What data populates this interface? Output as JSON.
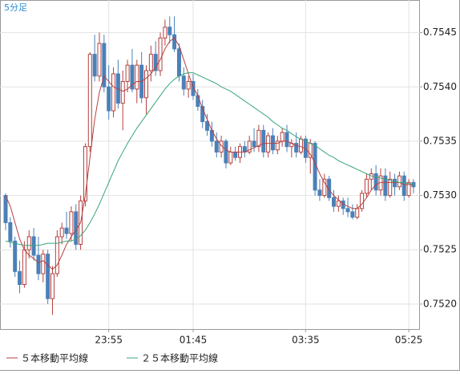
{
  "chart_data": {
    "type": "candlestick",
    "title": "5分足",
    "categories": [
      null,
      null,
      null,
      null,
      null,
      null,
      null,
      null,
      null,
      null,
      null,
      null,
      null,
      null,
      null,
      null,
      null,
      null,
      null,
      null,
      null,
      null,
      "23:55",
      null,
      null,
      null,
      null,
      null,
      null,
      null,
      null,
      null,
      null,
      null,
      null,
      null,
      null,
      null,
      null,
      null,
      "01:45",
      null,
      null,
      null,
      null,
      null,
      null,
      null,
      null,
      null,
      null,
      null,
      null,
      null,
      null,
      null,
      null,
      null,
      null,
      null,
      null,
      null,
      null,
      null,
      "03:35",
      null,
      null,
      null,
      null,
      null,
      null,
      null,
      null,
      null,
      null,
      null,
      null,
      null,
      null,
      null,
      null,
      null,
      null,
      null,
      null,
      null,
      "05:25",
      null
    ],
    "open": [
      0.753,
      0.75275,
      0.75258,
      0.7523,
      0.75218,
      0.7525,
      0.75262,
      0.75245,
      0.75228,
      0.75246,
      0.75205,
      0.75228,
      0.75262,
      0.7527,
      0.75265,
      0.75285,
      0.75255,
      0.75295,
      0.75345,
      0.7543,
      0.7541,
      0.7544,
      0.754,
      0.75378,
      0.75412,
      0.75385,
      0.75405,
      0.7542,
      0.75398,
      0.7542,
      0.7539,
      0.75415,
      0.7543,
      0.75415,
      0.75445,
      0.75455,
      0.75448,
      0.75435,
      0.7541,
      0.75398,
      0.75405,
      0.75392,
      0.75382,
      0.75368,
      0.7536,
      0.7535,
      0.7534,
      0.7535,
      0.7533,
      0.7534,
      0.75335,
      0.75345,
      0.7534,
      0.7535,
      0.75345,
      0.7536,
      0.7534,
      0.75355,
      0.75342,
      0.7535,
      0.75358,
      0.75345,
      0.75348,
      0.7534,
      0.75352,
      0.75335,
      0.75348,
      0.75305,
      0.753,
      0.75315,
      0.75298,
      0.7529,
      0.75295,
      0.75288,
      0.75285,
      0.7528,
      0.75288,
      0.75302,
      0.75315,
      0.7532,
      0.75305,
      0.75318,
      0.753,
      0.75315,
      0.75308,
      0.75318,
      0.753,
      0.75312
    ],
    "high": [
      0.75302,
      0.7528,
      0.75262,
      0.7524,
      0.75258,
      0.75268,
      0.7527,
      0.75262,
      0.7525,
      0.7525,
      0.75235,
      0.75268,
      0.75275,
      0.75285,
      0.7529,
      0.75292,
      0.753,
      0.75348,
      0.75432,
      0.75448,
      0.7545,
      0.75448,
      0.7542,
      0.75418,
      0.75425,
      0.75415,
      0.75425,
      0.75435,
      0.75425,
      0.75432,
      0.7542,
      0.75438,
      0.75442,
      0.7545,
      0.75462,
      0.75465,
      0.75465,
      0.7544,
      0.75418,
      0.7541,
      0.75412,
      0.75398,
      0.75388,
      0.75375,
      0.75368,
      0.75358,
      0.75355,
      0.75352,
      0.75345,
      0.75345,
      0.75348,
      0.7535,
      0.75355,
      0.75362,
      0.75365,
      0.75365,
      0.75358,
      0.75362,
      0.75355,
      0.75362,
      0.75365,
      0.75352,
      0.75358,
      0.75355,
      0.75355,
      0.75352,
      0.7535,
      0.75315,
      0.7532,
      0.75318,
      0.75305,
      0.753,
      0.75298,
      0.75298,
      0.75292,
      0.75292,
      0.75305,
      0.7532,
      0.75325,
      0.75328,
      0.75325,
      0.75325,
      0.75322,
      0.7532,
      0.75322,
      0.75322,
      0.75315,
      0.75315
    ],
    "low": [
      0.75268,
      0.75252,
      0.75225,
      0.7521,
      0.75215,
      0.75242,
      0.7524,
      0.75222,
      0.7522,
      0.752,
      0.7519,
      0.75225,
      0.75255,
      0.7526,
      0.75258,
      0.7525,
      0.7525,
      0.7529,
      0.7534,
      0.75405,
      0.75405,
      0.75395,
      0.7537,
      0.75372,
      0.7538,
      0.7536,
      0.75395,
      0.75395,
      0.75385,
      0.75385,
      0.75375,
      0.75405,
      0.7541,
      0.7541,
      0.75438,
      0.7544,
      0.75432,
      0.75405,
      0.75392,
      0.7539,
      0.75388,
      0.75378,
      0.75362,
      0.75355,
      0.75345,
      0.75335,
      0.75335,
      0.75325,
      0.75328,
      0.75332,
      0.7533,
      0.75335,
      0.75338,
      0.7534,
      0.7534,
      0.75335,
      0.75335,
      0.75338,
      0.75338,
      0.75345,
      0.7534,
      0.75335,
      0.75335,
      0.75338,
      0.7533,
      0.7532,
      0.753,
      0.75295,
      0.75298,
      0.75295,
      0.75285,
      0.75285,
      0.75282,
      0.7528,
      0.75278,
      0.75278,
      0.75285,
      0.75298,
      0.75305,
      0.753,
      0.753,
      0.75295,
      0.75298,
      0.753,
      0.75305,
      0.75295,
      0.75298,
      0.75302
    ],
    "close": [
      0.75275,
      0.75258,
      0.7523,
      0.75218,
      0.7525,
      0.75262,
      0.75245,
      0.75228,
      0.75246,
      0.75205,
      0.75228,
      0.75262,
      0.7527,
      0.75265,
      0.75285,
      0.75255,
      0.75295,
      0.75345,
      0.7543,
      0.7541,
      0.7544,
      0.754,
      0.75378,
      0.75412,
      0.75385,
      0.75405,
      0.7542,
      0.75398,
      0.7542,
      0.7539,
      0.75415,
      0.7543,
      0.75415,
      0.75445,
      0.75455,
      0.75448,
      0.75435,
      0.7541,
      0.75398,
      0.75405,
      0.75392,
      0.75382,
      0.75368,
      0.7536,
      0.7535,
      0.7534,
      0.7535,
      0.7533,
      0.7534,
      0.75335,
      0.75345,
      0.7534,
      0.7535,
      0.75345,
      0.7536,
      0.7534,
      0.75355,
      0.75342,
      0.7535,
      0.75358,
      0.75345,
      0.75348,
      0.7534,
      0.75352,
      0.75335,
      0.75348,
      0.75305,
      0.753,
      0.75315,
      0.75298,
      0.7529,
      0.75295,
      0.75288,
      0.75285,
      0.7528,
      0.75288,
      0.75302,
      0.75315,
      0.7532,
      0.75305,
      0.75318,
      0.753,
      0.75315,
      0.75308,
      0.75318,
      0.753,
      0.75312,
      0.75308
    ],
    "up_color": "#b5413f",
    "down_color": "#4b80b8",
    "series": [
      {
        "name": "５本移動平均線",
        "color": "#b5413f",
        "values": [
          0.753,
          0.7529,
          0.75275,
          0.7526,
          0.7525,
          0.75245,
          0.75242,
          0.75238,
          0.7524,
          0.75236,
          0.75232,
          0.75236,
          0.75245,
          0.75255,
          0.75262,
          0.75268,
          0.75275,
          0.753,
          0.75335,
          0.7537,
          0.75395,
          0.7541,
          0.75405,
          0.754,
          0.75398,
          0.75396,
          0.75398,
          0.75402,
          0.75405,
          0.75405,
          0.75408,
          0.75412,
          0.75418,
          0.75425,
          0.75435,
          0.75442,
          0.75445,
          0.75438,
          0.75425,
          0.75412,
          0.754,
          0.75392,
          0.7538,
          0.7537,
          0.7536,
          0.75352,
          0.75346,
          0.75342,
          0.7534,
          0.7534,
          0.7534,
          0.7534,
          0.75342,
          0.75344,
          0.75346,
          0.75348,
          0.75348,
          0.75348,
          0.75348,
          0.7535,
          0.7535,
          0.75348,
          0.75346,
          0.75345,
          0.75343,
          0.75338,
          0.7533,
          0.7532,
          0.75312,
          0.75305,
          0.753,
          0.75296,
          0.75292,
          0.7529,
          0.75288,
          0.75288,
          0.75292,
          0.75298,
          0.75305,
          0.7531,
          0.75312,
          0.75312,
          0.75312,
          0.75312,
          0.75312,
          0.7531,
          0.7531,
          0.7531
        ]
      },
      {
        "name": "２５本移動平均線",
        "color": "#3aa57a",
        "values": [
          0.75258,
          0.75257,
          0.75256,
          0.75255,
          0.75254,
          0.75254,
          0.75254,
          0.75254,
          0.75255,
          0.75256,
          0.75256,
          0.75256,
          0.75257,
          0.75258,
          0.75258,
          0.7526,
          0.75263,
          0.75268,
          0.75275,
          0.75283,
          0.75292,
          0.75302,
          0.75312,
          0.75322,
          0.75332,
          0.7534,
          0.75348,
          0.75355,
          0.75362,
          0.75368,
          0.75374,
          0.7538,
          0.75386,
          0.75392,
          0.75398,
          0.75403,
          0.75407,
          0.7541,
          0.75412,
          0.75413,
          0.75413,
          0.75411,
          0.75409,
          0.75407,
          0.75405,
          0.75403,
          0.754,
          0.75398,
          0.75396,
          0.75393,
          0.7539,
          0.75387,
          0.75384,
          0.75381,
          0.75378,
          0.75375,
          0.75372,
          0.75368,
          0.75365,
          0.75362,
          0.7536,
          0.75357,
          0.75354,
          0.75352,
          0.7535,
          0.75348,
          0.75346,
          0.75343,
          0.7534,
          0.75337,
          0.75335,
          0.75332,
          0.7533,
          0.75328,
          0.75326,
          0.75324,
          0.75322,
          0.7532,
          0.75318,
          0.75317,
          0.75316,
          0.75315,
          0.75314,
          0.75313,
          0.75312,
          0.75312,
          0.75311,
          0.7531
        ]
      }
    ],
    "ylim": [
      0.75177,
      0.7548
    ],
    "yticks": [
      {
        "value": 0.752,
        "label": "0.7520"
      },
      0.7525,
      {
        "value": 0.753,
        "label": "0.7530"
      },
      0.7535,
      {
        "value": 0.754,
        "label": "0.7540"
      },
      0.7545
    ],
    "grid": true
  }
}
